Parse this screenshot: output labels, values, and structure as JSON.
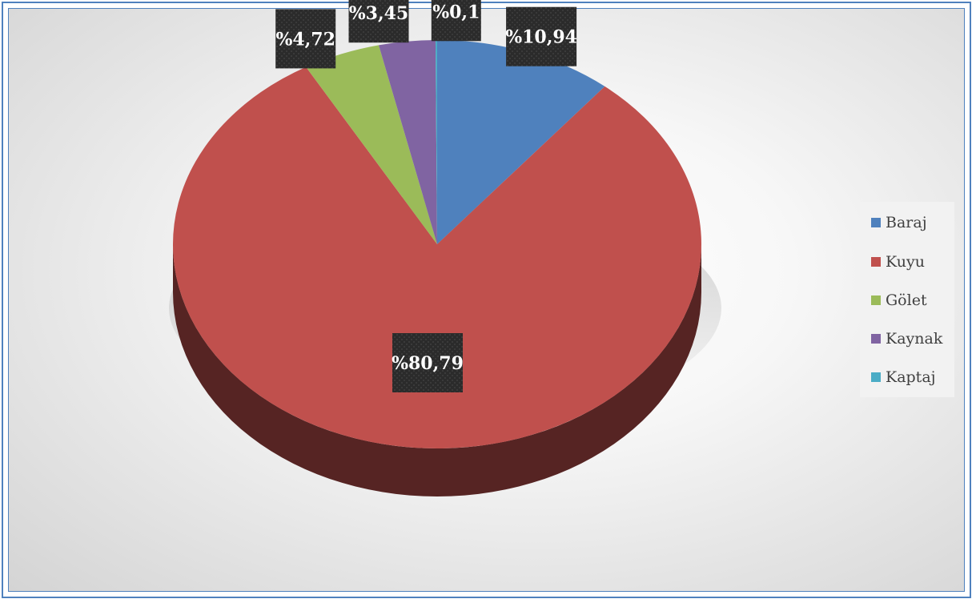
{
  "chart_data": {
    "type": "pie",
    "categories": [
      "Baraj",
      "Kuyu",
      "Gölet",
      "Kaynak",
      "Kaptaj"
    ],
    "values": [
      10.94,
      80.79,
      4.72,
      3.45,
      0.1
    ],
    "data_labels": [
      "%10,94",
      "%80,79",
      "%4,72",
      "%3,45",
      "%0,1"
    ],
    "colors": [
      "#4f81bd",
      "#c0504d",
      "#9bbb59",
      "#8064a2",
      "#4bacc6"
    ],
    "legend_position": "right",
    "style": "3d"
  }
}
